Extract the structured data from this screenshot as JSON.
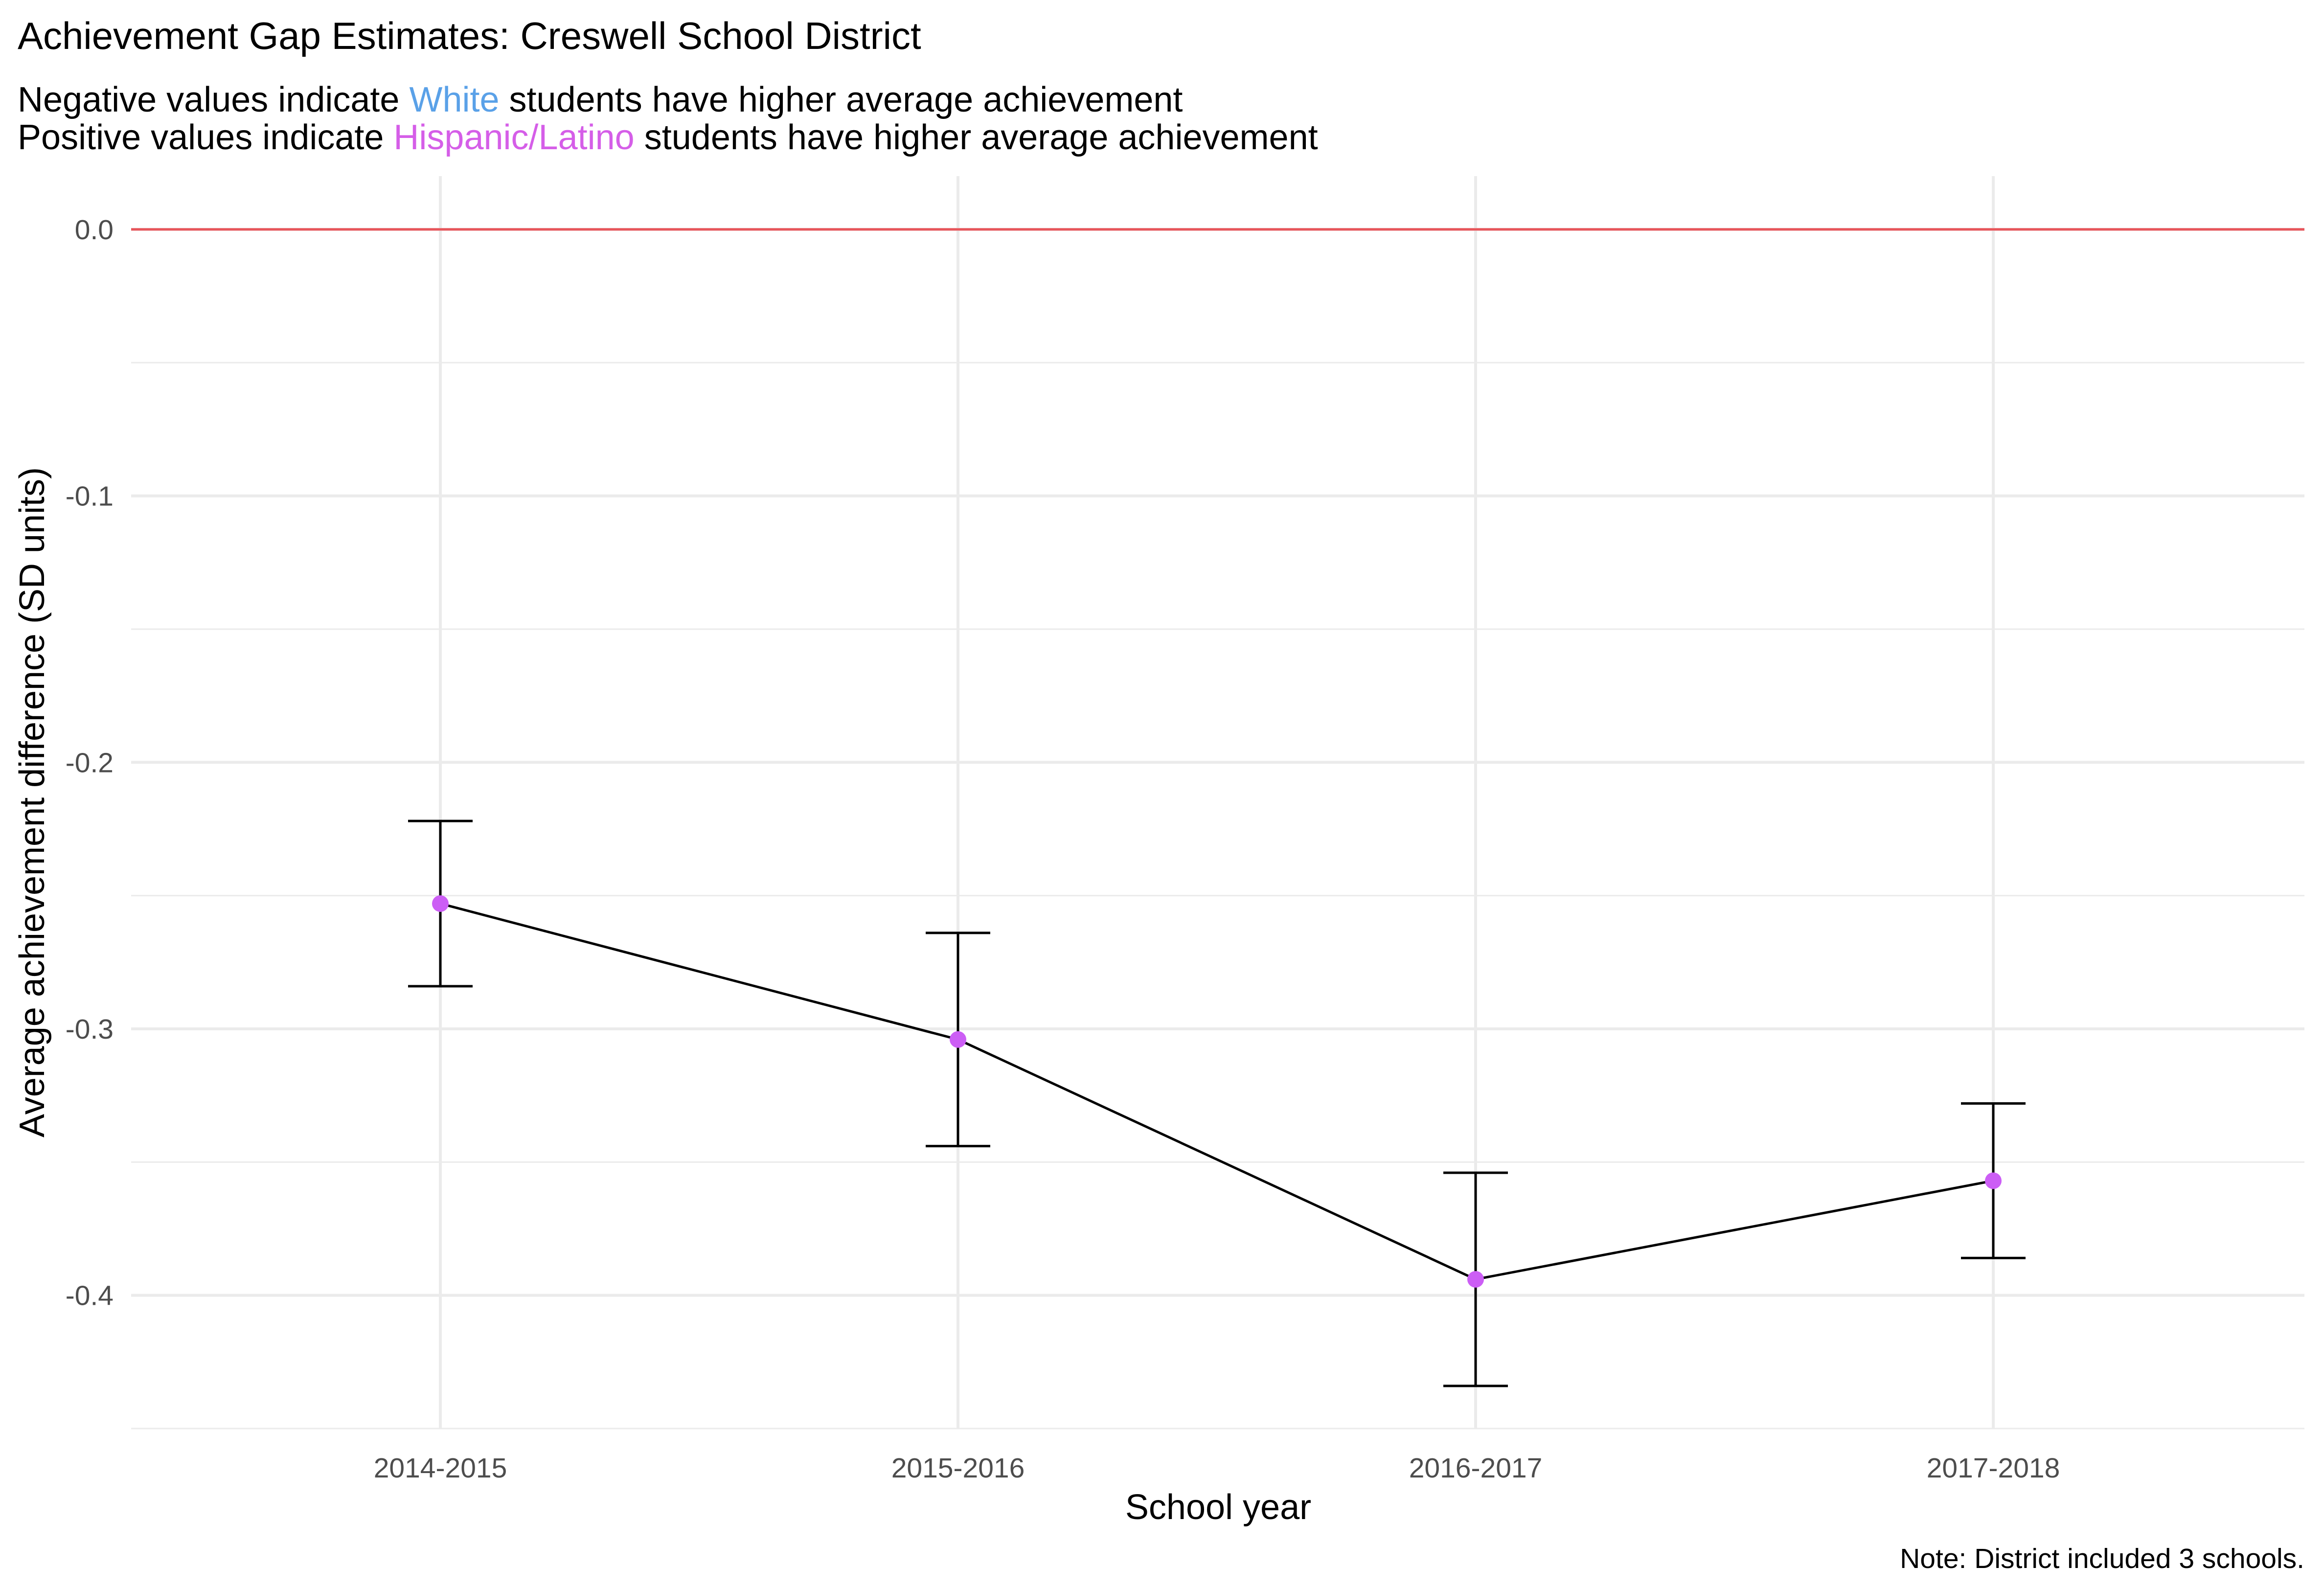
{
  "chart_data": {
    "type": "line",
    "title": "Achievement Gap Estimates: Creswell School District",
    "subtitle": {
      "line1": {
        "prefix": "Negative values indicate ",
        "highlight": "White",
        "suffix": " students have higher average achievement",
        "highlight_color": "#5aa1e8"
      },
      "line2": {
        "prefix": "Positive values indicate ",
        "highlight": "Hispanic/Latino",
        "suffix": " students have higher average achievement",
        "highlight_color": "#d55ee8"
      }
    },
    "xlabel": "School year",
    "ylabel": "Average achievement difference (SD units)",
    "caption": "Note: District included 3 schools.",
    "categories": [
      "2014-2015",
      "2015-2016",
      "2016-2017",
      "2017-2018"
    ],
    "series": [
      {
        "values": [
          -0.253,
          -0.304,
          -0.394,
          -0.357
        ],
        "lower": [
          -0.284,
          -0.344,
          -0.434,
          -0.386
        ],
        "upper": [
          -0.222,
          -0.264,
          -0.354,
          -0.328
        ],
        "point_color": "#cc5ef5",
        "line_color": "#000000"
      }
    ],
    "yticks": [
      "0.0",
      "-0.1",
      "-0.2",
      "-0.3",
      "-0.4"
    ],
    "ylim": [
      -0.45,
      0.02
    ],
    "reference_line": {
      "y": 0.0,
      "color": "#e8555a"
    },
    "grid": true
  }
}
